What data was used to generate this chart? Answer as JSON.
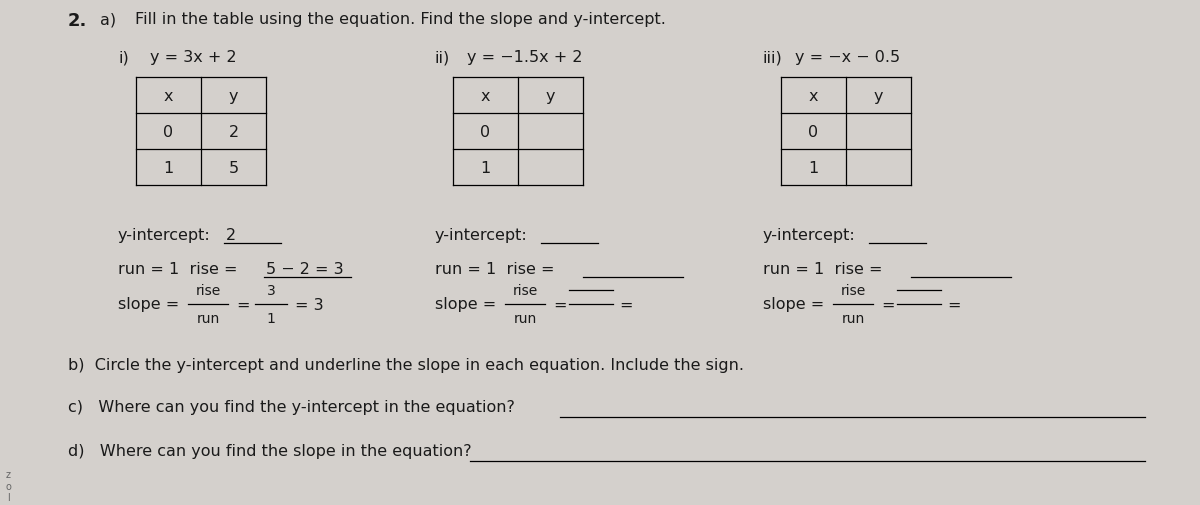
{
  "bg_color": "#d4d0cc",
  "text_color": "#1a1a1a",
  "title_num": "2.",
  "title_a": "a)",
  "title_rest": "Fill in the table using the equation. Find the slope and y-intercept.",
  "eq_labels": [
    "i)",
    "ii)",
    "iii)"
  ],
  "equations": [
    "y = 3x + 2",
    "y = −1.5x + 2",
    "y = −x − 0.5"
  ],
  "table_x": [
    [
      "x",
      "0",
      "1"
    ],
    [
      "x",
      "0",
      "1"
    ],
    [
      "x",
      "0",
      "1"
    ]
  ],
  "table_y": [
    [
      "y",
      "2",
      "5"
    ],
    [
      "y",
      "",
      ""
    ],
    [
      "y",
      "",
      ""
    ]
  ],
  "yint_val": [
    "2",
    "",
    ""
  ],
  "question_b": "b)  Circle the y-intercept and underline the slope in each equation. Include the sign.",
  "question_c": "c)   Where can you find the y-intercept in the equation?",
  "question_d": "d)   Where can you find the slope in the equation?",
  "fs_main": 11.5,
  "fs_small": 10.0,
  "fs_title_num": 13
}
